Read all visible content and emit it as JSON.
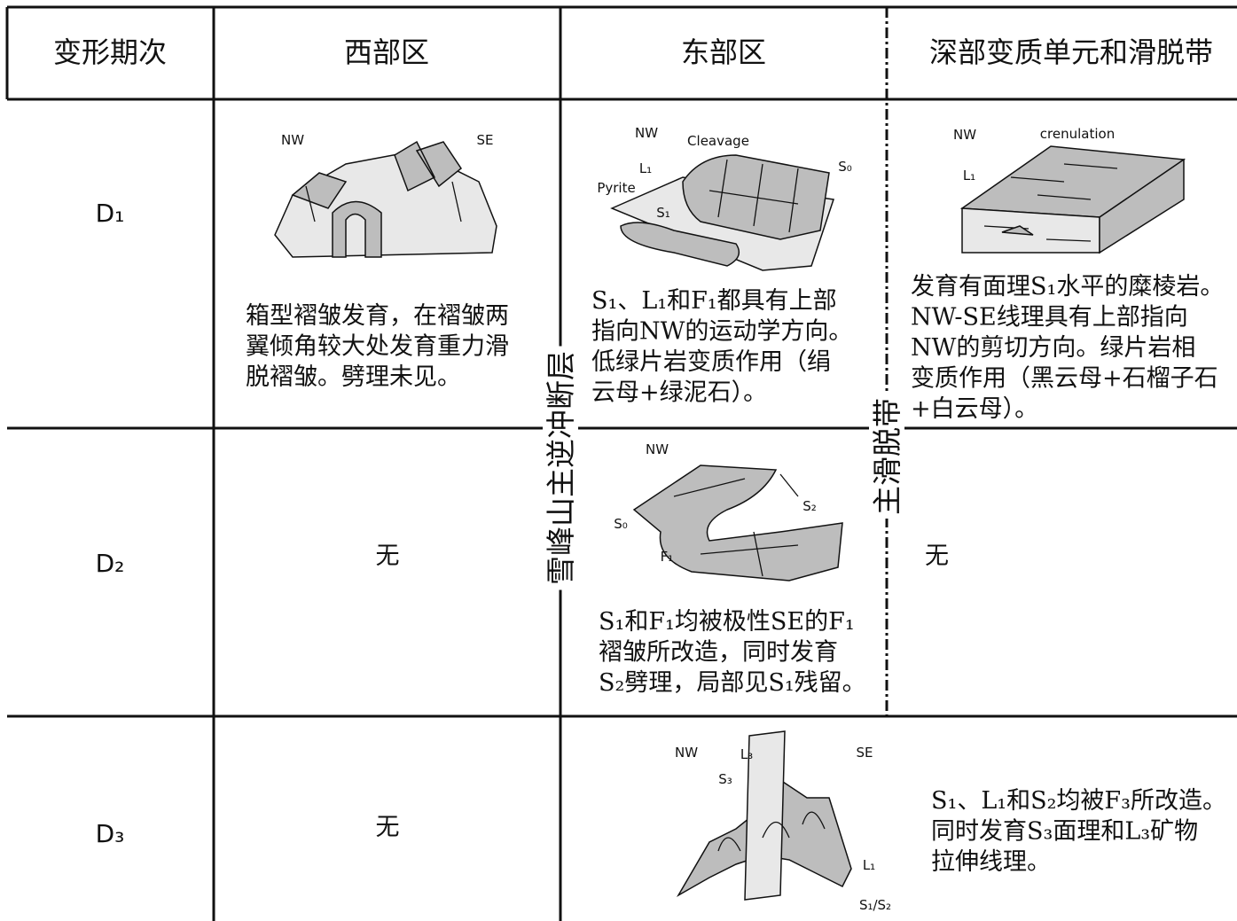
{
  "table": {
    "header": [
      "变形期次",
      "西部区",
      "东部区",
      "深部变质单元和滑脱带"
    ],
    "rows": [
      {
        "stage": "D₁",
        "west": [
          "箱型褶皱发育，在褶皱两",
          "翼倾角较大处发育重力滑",
          "脱褶皱。劈理未见。"
        ],
        "east": [
          "S₁、L₁和F₁都具有上部",
          "指向NW的运动学方向。",
          "低绿片岩变质作用（绢",
          "云母+绿泥石）。"
        ],
        "deep": [
          "发育有面理S₁水平的糜棱岩。",
          "NW-SE线理具有上部指向",
          "NW的剪切方向。绿片岩相",
          "变质作用（黑云母+石榴子石",
          "+白云母）。"
        ]
      },
      {
        "stage": "D₂",
        "west": [
          "无"
        ],
        "east": [
          "S₁和F₁均被极性SE的F₁",
          "褶皱所改造，同时发育",
          "S₂劈理，局部见S₁残留。"
        ],
        "deep": [
          "无"
        ]
      },
      {
        "stage": "D₃",
        "west": [
          "无"
        ],
        "deep": [
          "S₁、L₁和S₂均被F₃所改造。",
          "同时发育S₃面理和L₃矿物",
          "拉伸线理。"
        ]
      }
    ]
  },
  "boundaries": [
    "雪峰山主逆冲断层",
    "主滑脱带"
  ],
  "sketches": [
    {
      "labels": [
        "NW",
        "SE"
      ]
    },
    {
      "labels": [
        "NW",
        "Cleavage",
        "L₁",
        "S₀",
        "Pyrite",
        "S₁"
      ]
    },
    {
      "labels": [
        "NW",
        "crenulation",
        "L₁"
      ]
    },
    {
      "labels": [
        "NW",
        "S₂",
        "S₀",
        "F₁"
      ]
    },
    {
      "labels": [
        "NW",
        "L₃",
        "S₃",
        "SE",
        "L₁",
        "S₁/S₂"
      ]
    }
  ]
}
